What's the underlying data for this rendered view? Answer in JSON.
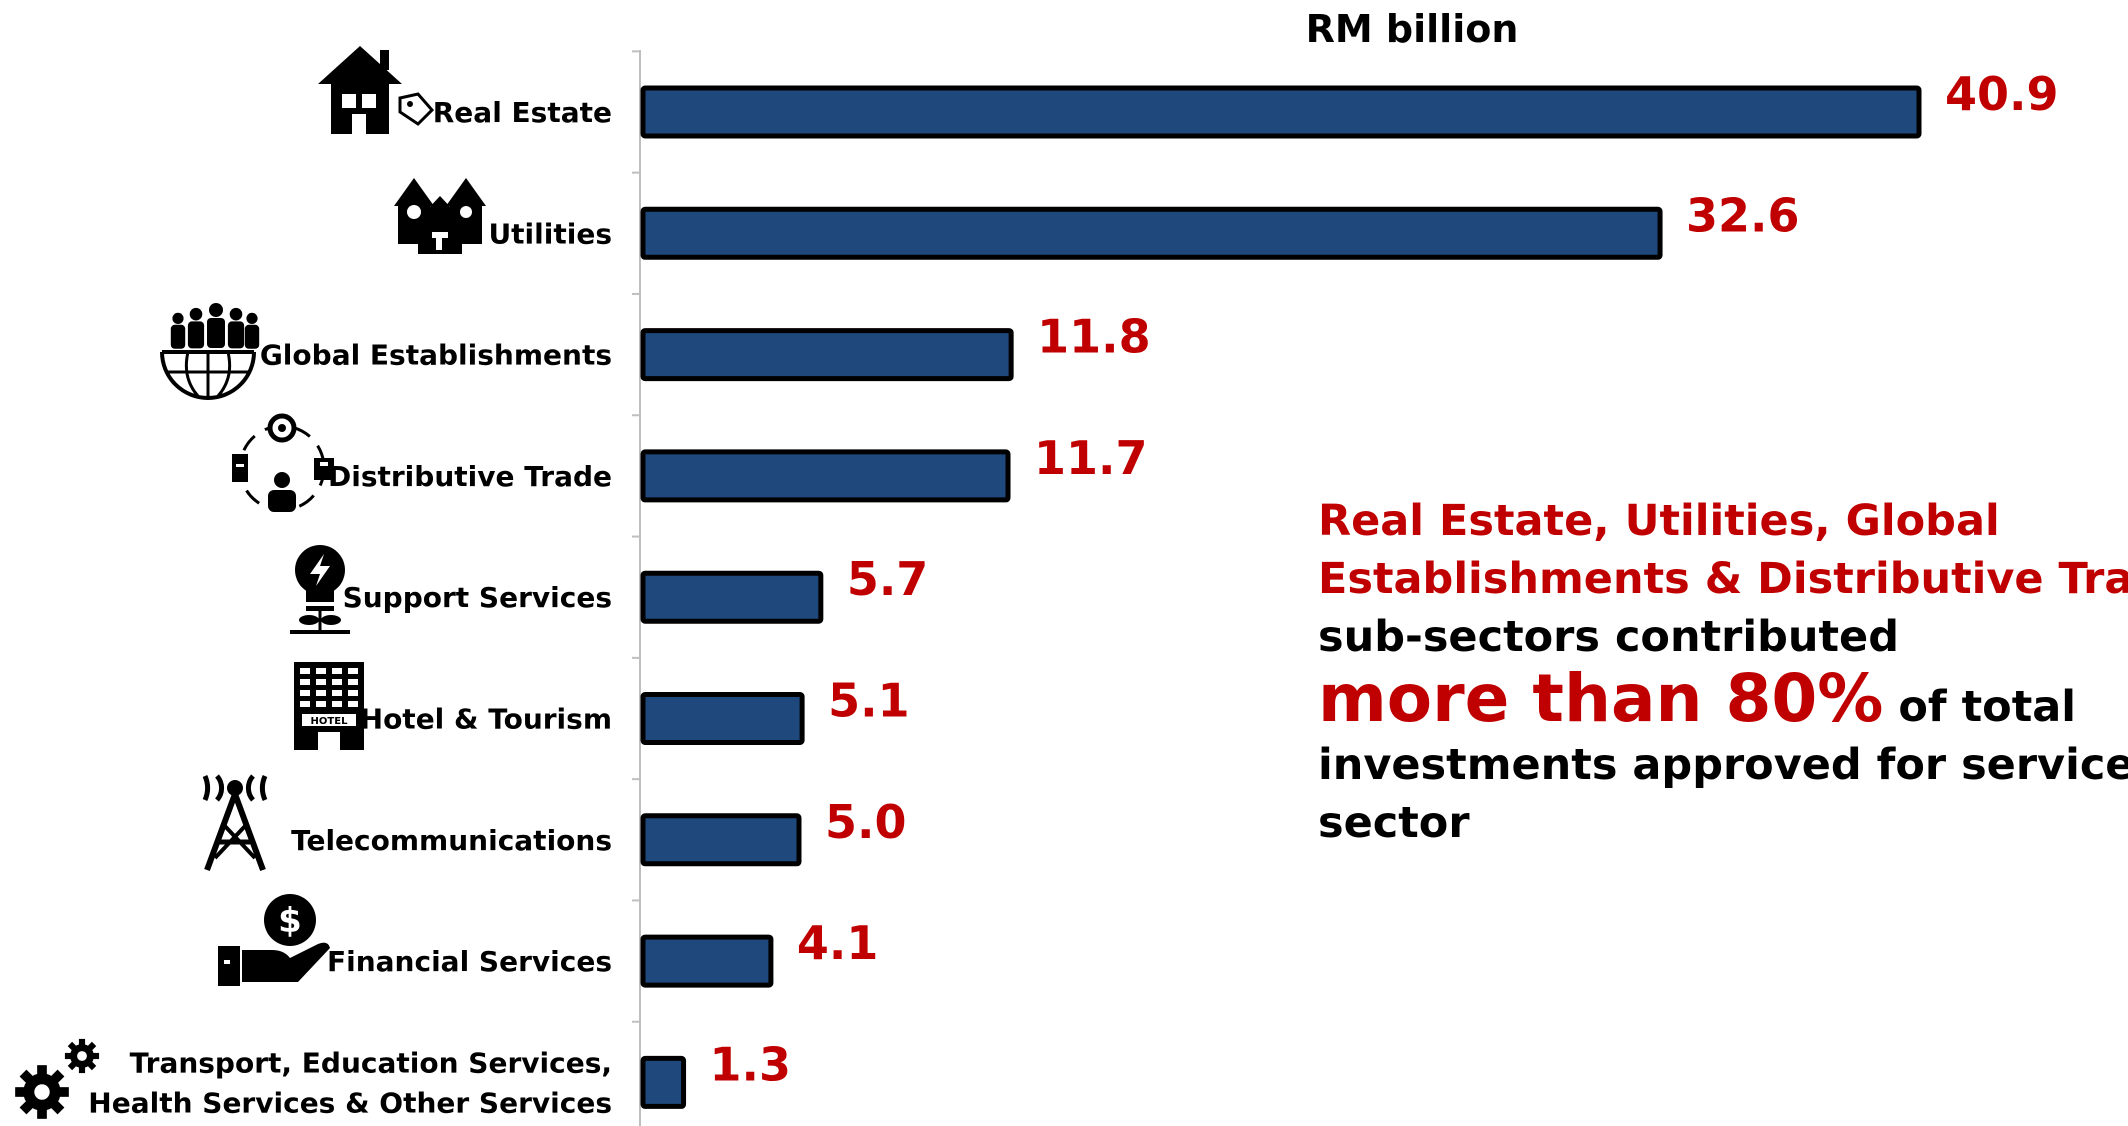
{
  "chart_data": {
    "type": "bar",
    "orientation": "horizontal",
    "unit_label": "RM billion",
    "categories": [
      "Real Estate",
      "Utilities",
      "Global Establishments",
      "Distributive Trade",
      "Support Services",
      "Hotel & Tourism",
      "Telecommunications",
      "Financial Services",
      "Transport, Education Services, Health Services & Other Services"
    ],
    "category_lines": [
      [
        "Real Estate"
      ],
      [
        "Utilities"
      ],
      [
        "Global Establishments"
      ],
      [
        "Distributive Trade"
      ],
      [
        "Support Services"
      ],
      [
        "Hotel & Tourism"
      ],
      [
        "Telecommunications"
      ],
      [
        "Financial Services"
      ],
      [
        "Transport, Education Services,",
        "Health Services & Other Services"
      ]
    ],
    "values": [
      40.9,
      32.6,
      11.8,
      11.7,
      5.7,
      5.1,
      5.0,
      4.1,
      1.3
    ],
    "value_labels": [
      "40.9",
      "32.6",
      "11.8",
      "11.7",
      "5.7",
      "5.1",
      "5.0",
      "4.1",
      "1.3"
    ],
    "icons": [
      "house-tag-icon",
      "utilities-houses-icon",
      "globe-people-icon",
      "distribution-cycle-icon",
      "lightbulb-plant-icon",
      "hotel-building-icon",
      "radio-tower-icon",
      "hand-dollar-icon",
      "gears-icon"
    ],
    "xlim": [
      0,
      40.9
    ],
    "bar_color": "#1F497D",
    "bar_border": "#000000",
    "value_color": "#C00000"
  },
  "note": {
    "line1": "Real Estate, Utilities, Global",
    "line2": "Establishments & Distributive Trade",
    "line3": "sub-sectors contributed",
    "highlight": "more than 80%",
    "line4_rest": " of total",
    "line5": "investments approved for services",
    "line6": "sector"
  }
}
